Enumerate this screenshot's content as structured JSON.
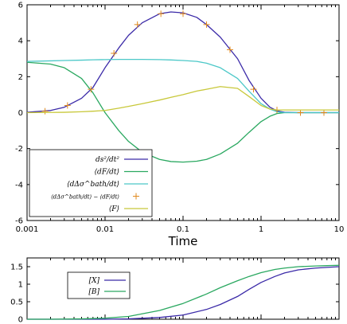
{
  "chart_data": [
    {
      "type": "line",
      "xscale": "log",
      "xlim": [
        0.001,
        10
      ],
      "ylim": [
        -6,
        6
      ],
      "xticks": [
        "0.001",
        "0.01",
        "0.1",
        "1",
        "10"
      ],
      "yticks": [
        "-6",
        "-4",
        "-2",
        "0",
        "2",
        "4",
        "6"
      ],
      "xlabel": "Time",
      "legend_position": "bottom-left",
      "grid": false,
      "series": [
        {
          "name": "ds²/dt²",
          "color": "#3b2aa8",
          "style": "line",
          "x": [
            0.001,
            0.002,
            0.003,
            0.005,
            0.007,
            0.01,
            0.015,
            0.02,
            0.03,
            0.05,
            0.07,
            0.1,
            0.15,
            0.2,
            0.3,
            0.5,
            0.7,
            1.0,
            1.3,
            1.6,
            2.0,
            3.0,
            5.0,
            10.0
          ],
          "y": [
            0.02,
            0.12,
            0.3,
            0.8,
            1.4,
            2.5,
            3.6,
            4.3,
            5.0,
            5.5,
            5.6,
            5.55,
            5.3,
            4.9,
            4.2,
            3.0,
            1.8,
            0.8,
            0.3,
            0.1,
            0.02,
            0.0,
            0.0,
            0.0
          ]
        },
        {
          "name": "⟨dF/dt⟩",
          "color": "#2aa860",
          "style": "line",
          "x": [
            0.001,
            0.002,
            0.003,
            0.005,
            0.007,
            0.01,
            0.015,
            0.02,
            0.03,
            0.05,
            0.07,
            0.1,
            0.15,
            0.2,
            0.3,
            0.5,
            0.7,
            1.0,
            1.3,
            1.6,
            2.0,
            3.0,
            5.0,
            10.0
          ],
          "y": [
            2.8,
            2.7,
            2.5,
            1.9,
            1.1,
            0.0,
            -1.0,
            -1.6,
            -2.2,
            -2.6,
            -2.72,
            -2.75,
            -2.7,
            -2.6,
            -2.3,
            -1.7,
            -1.1,
            -0.5,
            -0.2,
            -0.05,
            0.0,
            0.0,
            0.0,
            0.0
          ]
        },
        {
          "name": "⟨dΔσ^bath/dt⟩",
          "color": "#4cc8c8",
          "style": "line",
          "x": [
            0.001,
            0.002,
            0.003,
            0.005,
            0.007,
            0.01,
            0.015,
            0.02,
            0.03,
            0.05,
            0.07,
            0.1,
            0.15,
            0.2,
            0.3,
            0.5,
            0.7,
            1.0,
            1.3,
            1.6,
            2.0,
            3.0,
            5.0,
            10.0
          ],
          "y": [
            2.85,
            2.88,
            2.9,
            2.92,
            2.94,
            2.95,
            2.96,
            2.96,
            2.96,
            2.95,
            2.93,
            2.9,
            2.85,
            2.75,
            2.5,
            1.9,
            1.2,
            0.5,
            0.2,
            0.05,
            0.0,
            0.0,
            0.0,
            0.0
          ]
        },
        {
          "name": "⟨dΔσ^bath/dt⟩ − ⟨dF/dt⟩",
          "color": "#e08a1e",
          "style": "markers",
          "x": [
            0.0017,
            0.0033,
            0.0066,
            0.013,
            0.026,
            0.052,
            0.1,
            0.2,
            0.4,
            0.8,
            1.6,
            3.2,
            6.4
          ],
          "y": [
            0.08,
            0.4,
            1.3,
            3.3,
            4.9,
            5.5,
            5.5,
            4.9,
            3.5,
            1.3,
            0.15,
            0.0,
            0.0
          ]
        },
        {
          "name": "⟨F⟩",
          "color": "#c8c83a",
          "style": "line",
          "x": [
            0.001,
            0.002,
            0.003,
            0.005,
            0.007,
            0.01,
            0.015,
            0.02,
            0.03,
            0.05,
            0.07,
            0.1,
            0.15,
            0.2,
            0.3,
            0.5,
            0.7,
            1.0,
            1.3,
            1.6,
            2.0,
            3.0,
            5.0,
            10.0
          ],
          "y": [
            0.0,
            0.01,
            0.02,
            0.05,
            0.08,
            0.12,
            0.25,
            0.35,
            0.5,
            0.7,
            0.85,
            1.0,
            1.2,
            1.3,
            1.45,
            1.35,
            0.9,
            0.4,
            0.2,
            0.15,
            0.15,
            0.15,
            0.15,
            0.15
          ]
        }
      ]
    },
    {
      "type": "line",
      "xscale": "log",
      "xlim": [
        0.001,
        10
      ],
      "ylim": [
        0,
        1.75
      ],
      "yticks": [
        "0",
        "0.5",
        "1",
        "1.5"
      ],
      "legend_position": "top-left",
      "grid": false,
      "series": [
        {
          "name": "[X]",
          "color": "#3b2aa8",
          "x": [
            0.001,
            0.002,
            0.005,
            0.01,
            0.02,
            0.05,
            0.1,
            0.2,
            0.3,
            0.5,
            0.7,
            1.0,
            1.5,
            2.0,
            3.0,
            5.0,
            7.0,
            10.0
          ],
          "y": [
            0.0,
            0.0,
            0.0,
            0.0,
            0.01,
            0.05,
            0.12,
            0.28,
            0.42,
            0.65,
            0.85,
            1.05,
            1.22,
            1.32,
            1.41,
            1.46,
            1.48,
            1.5
          ]
        },
        {
          "name": "[B]",
          "color": "#2aa860",
          "x": [
            0.001,
            0.002,
            0.005,
            0.01,
            0.02,
            0.05,
            0.1,
            0.2,
            0.3,
            0.5,
            0.7,
            1.0,
            1.5,
            2.0,
            3.0,
            5.0,
            7.0,
            10.0
          ],
          "y": [
            0.0,
            0.0,
            0.01,
            0.03,
            0.08,
            0.25,
            0.45,
            0.72,
            0.9,
            1.1,
            1.22,
            1.33,
            1.42,
            1.46,
            1.5,
            1.52,
            1.53,
            1.54
          ]
        }
      ]
    }
  ]
}
